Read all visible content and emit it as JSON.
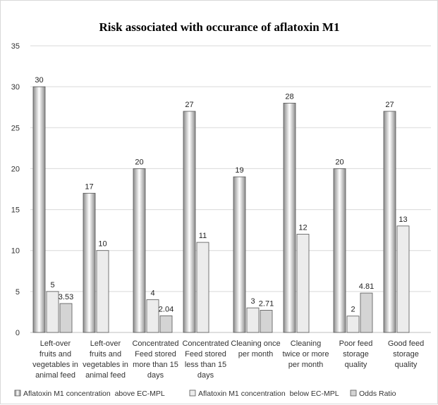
{
  "chart_data": {
    "type": "bar",
    "title": "Risk associated with occurance of aflatoxin M1",
    "xlabel": "",
    "ylabel": "",
    "ylim": [
      0,
      35
    ],
    "yticks": [
      0,
      5,
      10,
      15,
      20,
      25,
      30,
      35
    ],
    "grid": true,
    "legend_position": "bottom",
    "categories": [
      [
        "Left-over",
        "fruits and",
        "vegetables in",
        "animal feed"
      ],
      [
        "Left-over",
        "fruits and",
        "vegetables in",
        "animal feed"
      ],
      [
        "Concentrated",
        "Feed stored",
        "more than 15",
        "days"
      ],
      [
        "Concentrated",
        "Feed stored",
        "less than 15",
        "days"
      ],
      [
        "Cleaning once",
        "per month"
      ],
      [
        "Cleaning",
        "twice or more",
        "per month"
      ],
      [
        "Poor feed",
        "storage",
        "quality"
      ],
      [
        "Good feed",
        "storage",
        "quality"
      ]
    ],
    "series": [
      {
        "name": "Aflatoxin M1 concentration  above EC-MPL",
        "values": [
          30,
          17,
          20,
          27,
          19,
          28,
          20,
          27
        ],
        "labels": [
          "30",
          "17",
          "20",
          "27",
          "19",
          "28",
          "20",
          "27"
        ]
      },
      {
        "name": "Aflatoxin M1 concentration  below EC-MPL",
        "values": [
          5,
          10,
          4,
          11,
          3,
          12,
          2,
          13
        ],
        "labels": [
          "5",
          "10",
          "4",
          "11",
          "3",
          "12",
          "2",
          "13"
        ]
      },
      {
        "name": "Odds Ratio",
        "values": [
          3.53,
          null,
          2.04,
          null,
          2.71,
          null,
          4.81,
          null
        ],
        "labels": [
          "3.53",
          null,
          "2.04",
          null,
          "2.71",
          null,
          "4.81",
          null
        ]
      }
    ]
  },
  "colors": {
    "series_0_edge": "#8c8c8c",
    "series_0_mid": "#ffffff",
    "series_1_fill": "#ececec",
    "series_2_fill": "#d4d4d4",
    "bar_stroke": "#555555",
    "grid": "#d9d9d9",
    "axis": "#bfbfbf"
  }
}
